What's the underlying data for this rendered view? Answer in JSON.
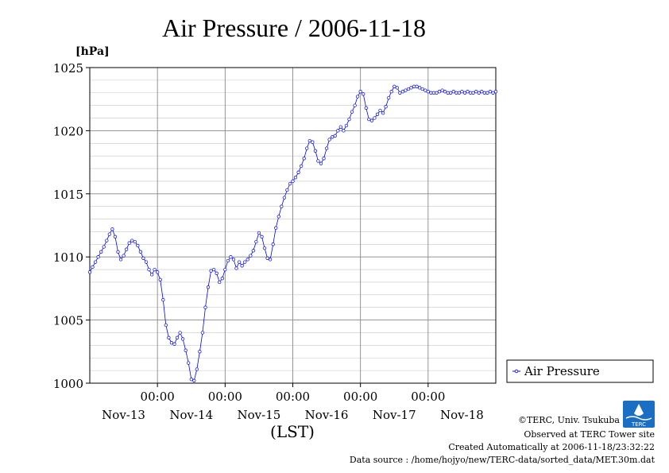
{
  "chart_data": {
    "type": "line",
    "title": "Air Pressure / 2006-11-18",
    "y_unit_label": "[hPa]",
    "xlabel": "(LST)",
    "ylim": [
      1000,
      1025
    ],
    "y_ticks": [
      "1000",
      "1005",
      "1010",
      "1015",
      "1020",
      "1025"
    ],
    "x_tick_time_labels": [
      "00:00",
      "00:00",
      "00:00",
      "00:00",
      "00:00"
    ],
    "x_date_labels": [
      "Nov-13",
      "Nov-14",
      "Nov-15",
      "Nov-16",
      "Nov-17",
      "Nov-18"
    ],
    "x_range_hours": [
      -24,
      120
    ],
    "grid": true,
    "legend": {
      "placement": "right",
      "entries": [
        "Air Pressure"
      ]
    },
    "line_color": "#0000ff",
    "series": [
      {
        "name": "Air Pressure",
        "x_hours": [
          -24,
          -23,
          -22,
          -21,
          -20,
          -19,
          -18,
          -17,
          -16,
          -15,
          -14,
          -13,
          -12,
          -11,
          -10,
          -9,
          -8,
          -7,
          -6,
          -5,
          -4,
          -3,
          -2,
          -1,
          0,
          1,
          2,
          3,
          4,
          5,
          6,
          7,
          8,
          9,
          10,
          11,
          12,
          13,
          14,
          15,
          16,
          17,
          18,
          19,
          20,
          21,
          22,
          23,
          24,
          25,
          26,
          27,
          28,
          29,
          30,
          31,
          32,
          33,
          34,
          35,
          36,
          37,
          38,
          39,
          40,
          41,
          42,
          43,
          44,
          45,
          46,
          47,
          48,
          49,
          50,
          51,
          52,
          53,
          54,
          55,
          56,
          57,
          58,
          59,
          60,
          61,
          62,
          63,
          64,
          65,
          66,
          67,
          68,
          69,
          70,
          71,
          72,
          73,
          74,
          75,
          76,
          77,
          78,
          79,
          80,
          81,
          82,
          83,
          84,
          85,
          86,
          87,
          88,
          89,
          90,
          91,
          92,
          93,
          94,
          95,
          96,
          97,
          98,
          99,
          100,
          101,
          102,
          103,
          104,
          105,
          106,
          107,
          108,
          109,
          110,
          111,
          112,
          113,
          114,
          115,
          116,
          117,
          118,
          119,
          120
        ],
        "values": [
          1008.8,
          1009.2,
          1009.6,
          1010.0,
          1010.4,
          1010.8,
          1011.3,
          1011.8,
          1012.2,
          1011.6,
          1010.4,
          1009.8,
          1010.1,
          1010.6,
          1011.1,
          1011.3,
          1011.2,
          1010.9,
          1010.4,
          1009.9,
          1009.6,
          1009.0,
          1008.6,
          1009.0,
          1008.8,
          1008.2,
          1006.6,
          1004.6,
          1003.6,
          1003.2,
          1003.1,
          1003.6,
          1004.0,
          1003.5,
          1002.6,
          1001.6,
          1000.3,
          1000.2,
          1001.1,
          1002.5,
          1004.0,
          1006.0,
          1007.6,
          1008.9,
          1009.0,
          1008.7,
          1008.0,
          1008.3,
          1009.0,
          1009.7,
          1010.0,
          1009.8,
          1009.1,
          1009.6,
          1009.3,
          1009.6,
          1009.8,
          1010.1,
          1010.5,
          1011.2,
          1011.9,
          1011.6,
          1010.7,
          1009.9,
          1009.8,
          1011.0,
          1012.3,
          1013.2,
          1014.0,
          1014.7,
          1015.3,
          1015.8,
          1016.0,
          1016.3,
          1016.7,
          1017.2,
          1017.8,
          1018.6,
          1019.2,
          1019.1,
          1018.4,
          1017.6,
          1017.4,
          1017.8,
          1018.6,
          1019.3,
          1019.5,
          1019.6,
          1020.0,
          1020.3,
          1020.0,
          1020.4,
          1020.9,
          1021.5,
          1022.0,
          1022.7,
          1023.1,
          1022.9,
          1021.8,
          1020.9,
          1020.8,
          1021.0,
          1021.3,
          1021.6,
          1021.4,
          1021.9,
          1022.6,
          1023.1,
          1023.5,
          1023.4,
          1023.0,
          1023.1,
          1023.2,
          1023.3,
          1023.4,
          1023.5,
          1023.5,
          1023.4,
          1023.3,
          1023.2,
          1023.1,
          1023.0,
          1023.0,
          1023.0,
          1023.1,
          1023.2,
          1023.1,
          1023.0,
          1023.0,
          1023.1,
          1023.0,
          1023.0,
          1023.1,
          1023.0,
          1023.1,
          1023.0,
          1023.0,
          1023.1,
          1023.0,
          1023.1,
          1023.0,
          1023.0,
          1023.1,
          1023.0,
          1023.1
        ]
      }
    ]
  },
  "footer": {
    "copyright": "©TERC, Univ. Tsukuba",
    "observed": "Observed at TERC Tower site",
    "created": "Created Automatically at 2006-11-18/23:32:22",
    "source": "Data source : /home/hojyo/new/TERC-data/sorted_data/MET.30m.dat",
    "logo_text": "TERC"
  }
}
